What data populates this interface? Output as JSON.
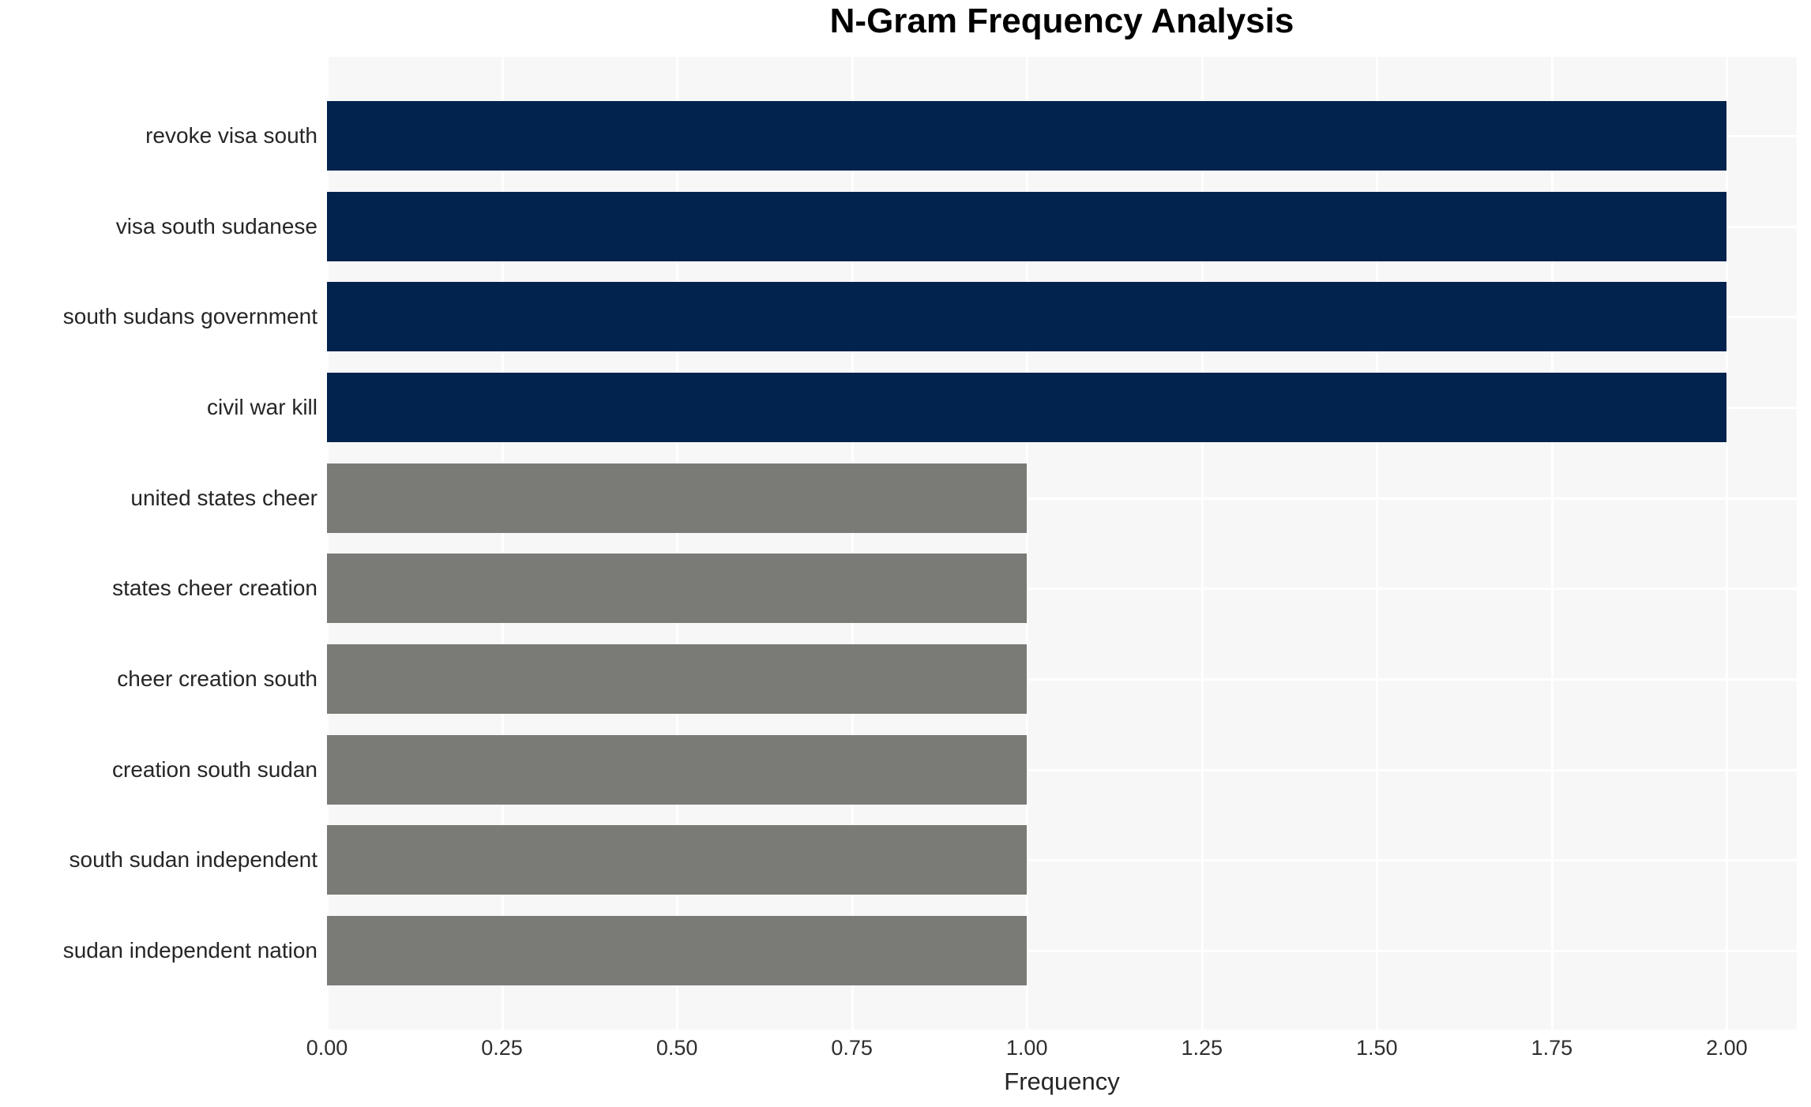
{
  "chart_data": {
    "type": "bar",
    "orientation": "horizontal",
    "title": "N-Gram Frequency Analysis",
    "xlabel": "Frequency",
    "ylabel": "",
    "categories": [
      "revoke visa south",
      "visa south sudanese",
      "south sudans government",
      "civil war kill",
      "united states cheer",
      "states cheer creation",
      "cheer creation south",
      "creation south sudan",
      "south sudan independent",
      "sudan independent nation"
    ],
    "values": [
      2,
      2,
      2,
      2,
      1,
      1,
      1,
      1,
      1,
      1
    ],
    "bar_colors": [
      "#02234d",
      "#02234d",
      "#02234d",
      "#02234d",
      "#7a7a76",
      "#7a7a76",
      "#7a7a76",
      "#7a7a76",
      "#7a7a76",
      "#7a7a76"
    ],
    "xlim": [
      0,
      2.1
    ],
    "xticks": [
      0,
      0.25,
      0.5,
      0.75,
      1.0,
      1.25,
      1.5,
      1.75,
      2.0
    ],
    "xtick_labels": [
      "0.00",
      "0.25",
      "0.50",
      "0.75",
      "1.00",
      "1.25",
      "1.50",
      "1.75",
      "2.00"
    ],
    "grid": {
      "vertical": true,
      "horizontal": true
    },
    "legend_position": "none"
  },
  "style": {
    "figure_bg": "#ffffff",
    "plot_bg": "#f7f7f8",
    "grid_color": "#ffffff",
    "title_color": "#000000",
    "axis_label_color": "#262626",
    "tick_label_color": "#2e2e2e"
  }
}
